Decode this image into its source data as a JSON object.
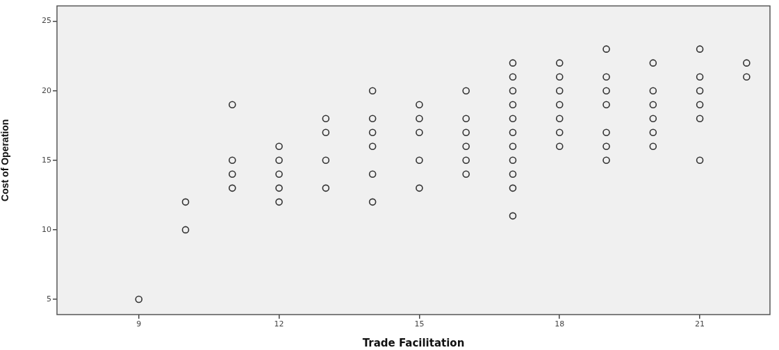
{
  "chart_data": {
    "type": "scatter",
    "xlabel": "Trade Facilitation",
    "ylabel": "Cost of Operation",
    "xlim": [
      7.25,
      22.5
    ],
    "xticks": [
      9,
      12,
      15,
      18,
      21
    ],
    "ylim": [
      3.9,
      26.1
    ],
    "yticks": [
      5,
      10,
      15,
      20,
      25
    ],
    "grid": false,
    "legend": false,
    "marker": "circle",
    "series": [
      {
        "color": "#333333",
        "x": [
          9,
          10,
          10,
          11,
          11,
          11,
          11,
          12,
          12,
          12,
          12,
          12,
          13,
          13,
          13,
          13,
          14,
          14,
          14,
          14,
          14,
          14,
          15,
          15,
          15,
          15,
          15,
          16,
          16,
          16,
          16,
          16,
          16,
          17,
          17,
          17,
          17,
          17,
          17,
          17,
          17,
          17,
          17,
          17,
          18,
          18,
          18,
          18,
          18,
          18,
          18,
          19,
          19,
          19,
          19,
          19,
          19,
          19,
          20,
          20,
          20,
          20,
          20,
          20,
          21,
          21,
          21,
          21,
          21,
          21,
          22,
          22
        ],
        "values": [
          5,
          12,
          10,
          19,
          15,
          14,
          13,
          16,
          15,
          14,
          13,
          12,
          18,
          17,
          15,
          13,
          20,
          18,
          17,
          16,
          14,
          12,
          19,
          18,
          17,
          15,
          13,
          20,
          18,
          17,
          16,
          15,
          14,
          22,
          21,
          20,
          19,
          18,
          17,
          16,
          15,
          14,
          13,
          11,
          22,
          21,
          20,
          19,
          18,
          17,
          16,
          23,
          21,
          20,
          19,
          17,
          16,
          15,
          22,
          20,
          19,
          18,
          17,
          16,
          23,
          21,
          20,
          19,
          18,
          15,
          22,
          21
        ]
      }
    ]
  }
}
